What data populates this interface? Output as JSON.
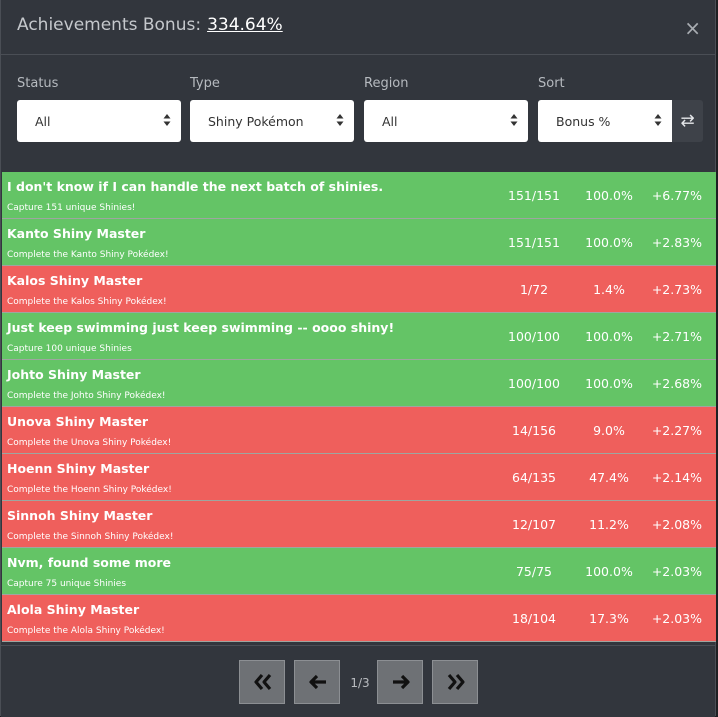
{
  "header": {
    "title": "Achievements Bonus:",
    "bonus": "334.64%",
    "close": "×"
  },
  "filters": {
    "status": {
      "label": "Status",
      "value": "All"
    },
    "type": {
      "label": "Type",
      "value": "Shiny Pokémon"
    },
    "region": {
      "label": "Region",
      "value": "All"
    },
    "sort": {
      "label": "Sort",
      "value": "Bonus %"
    },
    "swap_icon": "⇄"
  },
  "rows": [
    {
      "name": "I don't know if I can handle the next batch of shinies.",
      "desc": "Capture 151 unique Shinies!",
      "progress": "151/151",
      "percent": "100.0%",
      "bonus": "+6.77%",
      "state": "green"
    },
    {
      "name": "Kanto Shiny Master",
      "desc": "Complete the Kanto Shiny Pokédex!",
      "progress": "151/151",
      "percent": "100.0%",
      "bonus": "+2.83%",
      "state": "green"
    },
    {
      "name": "Kalos Shiny Master",
      "desc": "Complete the Kalos Shiny Pokédex!",
      "progress": "1/72",
      "percent": "1.4%",
      "bonus": "+2.73%",
      "state": "red"
    },
    {
      "name": "Just keep swimming just keep swimming -- oooo shiny!",
      "desc": "Capture 100 unique Shinies",
      "progress": "100/100",
      "percent": "100.0%",
      "bonus": "+2.71%",
      "state": "green"
    },
    {
      "name": "Johto Shiny Master",
      "desc": "Complete the Johto Shiny Pokédex!",
      "progress": "100/100",
      "percent": "100.0%",
      "bonus": "+2.68%",
      "state": "green"
    },
    {
      "name": "Unova Shiny Master",
      "desc": "Complete the Unova Shiny Pokédex!",
      "progress": "14/156",
      "percent": "9.0%",
      "bonus": "+2.27%",
      "state": "red"
    },
    {
      "name": "Hoenn Shiny Master",
      "desc": "Complete the Hoenn Shiny Pokédex!",
      "progress": "64/135",
      "percent": "47.4%",
      "bonus": "+2.14%",
      "state": "red"
    },
    {
      "name": "Sinnoh Shiny Master",
      "desc": "Complete the Sinnoh Shiny Pokédex!",
      "progress": "12/107",
      "percent": "11.2%",
      "bonus": "+2.08%",
      "state": "red"
    },
    {
      "name": "Nvm, found some more",
      "desc": "Capture 75 unique Shinies",
      "progress": "75/75",
      "percent": "100.0%",
      "bonus": "+2.03%",
      "state": "green"
    },
    {
      "name": "Alola Shiny Master",
      "desc": "Complete the Alola Shiny Pokédex!",
      "progress": "18/104",
      "percent": "17.3%",
      "bonus": "+2.03%",
      "state": "red"
    }
  ],
  "pagination": {
    "current": "1/3"
  },
  "colors": {
    "green": "#64c466",
    "red": "#ef5f5c",
    "modal_bg": "#32363d"
  }
}
